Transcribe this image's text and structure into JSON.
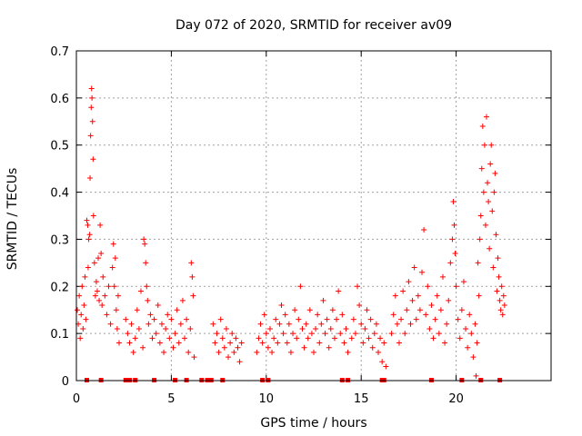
{
  "chart_data": {
    "type": "scatter",
    "title": "Day 072 of 2020, SRMTID for receiver av09",
    "xlabel": "GPS time / hours",
    "ylabel": "SRMTID / TECUs",
    "xlim": [
      0,
      25
    ],
    "ylim": [
      0,
      0.7
    ],
    "xticks": [
      0,
      5,
      10,
      15,
      20
    ],
    "yticks": [
      0,
      0.1,
      0.2,
      0.3,
      0.4,
      0.5,
      0.6,
      0.7
    ],
    "xtick_labels": [
      "0",
      "5",
      "10",
      "15",
      "20"
    ],
    "ytick_labels": [
      "0",
      "0.1",
      "0.2",
      "0.3",
      "0.4",
      "0.5",
      "0.6",
      "0.7"
    ],
    "grid": true,
    "marker": "plus",
    "series_color": "#ff0000",
    "series": [
      {
        "name": "SRMTID",
        "points": [
          [
            0.05,
            0.15
          ],
          [
            0.1,
            0.12
          ],
          [
            0.15,
            0.18
          ],
          [
            0.2,
            0.09
          ],
          [
            0.25,
            0.14
          ],
          [
            0.3,
            0.2
          ],
          [
            0.35,
            0.11
          ],
          [
            0.4,
            0.16
          ],
          [
            0.45,
            0.22
          ],
          [
            0.5,
            0.13
          ],
          [
            0.55,
            0.34
          ],
          [
            0.6,
            0.33
          ],
          [
            0.62,
            0.24
          ],
          [
            0.65,
            0.3
          ],
          [
            0.7,
            0.31
          ],
          [
            0.72,
            0.43
          ],
          [
            0.75,
            0.52
          ],
          [
            0.78,
            0.58
          ],
          [
            0.8,
            0.62
          ],
          [
            0.82,
            0.6
          ],
          [
            0.85,
            0.55
          ],
          [
            0.88,
            0.47
          ],
          [
            0.9,
            0.35
          ],
          [
            0.95,
            0.25
          ],
          [
            1.0,
            0.18
          ],
          [
            1.05,
            0.21
          ],
          [
            1.1,
            0.19
          ],
          [
            1.15,
            0.26
          ],
          [
            1.2,
            0.17
          ],
          [
            1.25,
            0.33
          ],
          [
            1.3,
            0.27
          ],
          [
            1.35,
            0.16
          ],
          [
            1.4,
            0.22
          ],
          [
            1.5,
            0.18
          ],
          [
            1.6,
            0.14
          ],
          [
            1.7,
            0.2
          ],
          [
            1.8,
            0.12
          ],
          [
            1.9,
            0.24
          ],
          [
            1.95,
            0.29
          ],
          [
            2.0,
            0.2
          ],
          [
            2.05,
            0.26
          ],
          [
            2.1,
            0.15
          ],
          [
            2.15,
            0.11
          ],
          [
            2.2,
            0.18
          ],
          [
            2.25,
            0.08
          ],
          [
            2.6,
            0.13
          ],
          [
            2.7,
            0.1
          ],
          [
            2.8,
            0.08
          ],
          [
            2.9,
            0.12
          ],
          [
            3.0,
            0.06
          ],
          [
            3.1,
            0.09
          ],
          [
            3.2,
            0.15
          ],
          [
            3.3,
            0.11
          ],
          [
            3.4,
            0.19
          ],
          [
            3.5,
            0.07
          ],
          [
            3.55,
            0.3
          ],
          [
            3.6,
            0.29
          ],
          [
            3.65,
            0.25
          ],
          [
            3.7,
            0.2
          ],
          [
            3.75,
            0.17
          ],
          [
            3.8,
            0.12
          ],
          [
            3.9,
            0.14
          ],
          [
            4.0,
            0.09
          ],
          [
            4.1,
            0.13
          ],
          [
            4.2,
            0.1
          ],
          [
            4.3,
            0.16
          ],
          [
            4.4,
            0.08
          ],
          [
            4.5,
            0.12
          ],
          [
            4.6,
            0.06
          ],
          [
            4.7,
            0.11
          ],
          [
            4.8,
            0.14
          ],
          [
            4.9,
            0.09
          ],
          [
            5.0,
            0.13
          ],
          [
            5.1,
            0.07
          ],
          [
            5.2,
            0.1
          ],
          [
            5.3,
            0.15
          ],
          [
            5.4,
            0.08
          ],
          [
            5.5,
            0.12
          ],
          [
            5.6,
            0.17
          ],
          [
            5.7,
            0.09
          ],
          [
            5.8,
            0.13
          ],
          [
            5.9,
            0.06
          ],
          [
            6.0,
            0.11
          ],
          [
            6.05,
            0.25
          ],
          [
            6.1,
            0.22
          ],
          [
            6.15,
            0.18
          ],
          [
            6.2,
            0.05
          ],
          [
            7.2,
            0.12
          ],
          [
            7.3,
            0.08
          ],
          [
            7.4,
            0.1
          ],
          [
            7.5,
            0.06
          ],
          [
            7.6,
            0.13
          ],
          [
            7.7,
            0.09
          ],
          [
            7.8,
            0.07
          ],
          [
            7.9,
            0.11
          ],
          [
            8.0,
            0.05
          ],
          [
            8.1,
            0.08
          ],
          [
            8.2,
            0.1
          ],
          [
            8.3,
            0.06
          ],
          [
            8.4,
            0.09
          ],
          [
            8.5,
            0.07
          ],
          [
            8.6,
            0.04
          ],
          [
            8.7,
            0.08
          ],
          [
            9.5,
            0.06
          ],
          [
            9.6,
            0.09
          ],
          [
            9.7,
            0.12
          ],
          [
            9.8,
            0.08
          ],
          [
            9.9,
            0.14
          ],
          [
            10.0,
            0.1
          ],
          [
            10.1,
            0.07
          ],
          [
            10.2,
            0.11
          ],
          [
            10.3,
            0.06
          ],
          [
            10.4,
            0.09
          ],
          [
            10.5,
            0.13
          ],
          [
            10.6,
            0.08
          ],
          [
            10.7,
            0.12
          ],
          [
            10.8,
            0.16
          ],
          [
            10.9,
            0.1
          ],
          [
            11.0,
            0.14
          ],
          [
            11.1,
            0.08
          ],
          [
            11.2,
            0.12
          ],
          [
            11.3,
            0.06
          ],
          [
            11.4,
            0.1
          ],
          [
            11.5,
            0.15
          ],
          [
            11.6,
            0.09
          ],
          [
            11.7,
            0.13
          ],
          [
            11.8,
            0.2
          ],
          [
            11.9,
            0.11
          ],
          [
            12.0,
            0.07
          ],
          [
            12.1,
            0.12
          ],
          [
            12.2,
            0.09
          ],
          [
            12.3,
            0.15
          ],
          [
            12.4,
            0.1
          ],
          [
            12.5,
            0.06
          ],
          [
            12.6,
            0.11
          ],
          [
            12.7,
            0.14
          ],
          [
            12.8,
            0.08
          ],
          [
            12.9,
            0.12
          ],
          [
            13.0,
            0.17
          ],
          [
            13.1,
            0.1
          ],
          [
            13.2,
            0.13
          ],
          [
            13.3,
            0.07
          ],
          [
            13.4,
            0.11
          ],
          [
            13.5,
            0.15
          ],
          [
            13.6,
            0.09
          ],
          [
            13.7,
            0.13
          ],
          [
            13.8,
            0.19
          ],
          [
            13.9,
            0.1
          ],
          [
            14.0,
            0.14
          ],
          [
            14.1,
            0.08
          ],
          [
            14.2,
            0.11
          ],
          [
            14.3,
            0.06
          ],
          [
            14.5,
            0.09
          ],
          [
            14.6,
            0.13
          ],
          [
            14.7,
            0.1
          ],
          [
            14.8,
            0.2
          ],
          [
            14.9,
            0.16
          ],
          [
            15.0,
            0.12
          ],
          [
            15.1,
            0.08
          ],
          [
            15.2,
            0.11
          ],
          [
            15.3,
            0.15
          ],
          [
            15.4,
            0.09
          ],
          [
            15.5,
            0.13
          ],
          [
            15.6,
            0.07
          ],
          [
            15.7,
            0.1
          ],
          [
            15.8,
            0.12
          ],
          [
            15.9,
            0.06
          ],
          [
            16.0,
            0.09
          ],
          [
            16.1,
            0.04
          ],
          [
            16.2,
            0.08
          ],
          [
            16.3,
            0.03
          ],
          [
            16.6,
            0.1
          ],
          [
            16.7,
            0.14
          ],
          [
            16.8,
            0.18
          ],
          [
            16.9,
            0.12
          ],
          [
            17.0,
            0.08
          ],
          [
            17.1,
            0.13
          ],
          [
            17.2,
            0.19
          ],
          [
            17.3,
            0.1
          ],
          [
            17.4,
            0.15
          ],
          [
            17.5,
            0.21
          ],
          [
            17.6,
            0.12
          ],
          [
            17.7,
            0.17
          ],
          [
            17.8,
            0.24
          ],
          [
            17.9,
            0.13
          ],
          [
            18.0,
            0.18
          ],
          [
            18.1,
            0.15
          ],
          [
            18.2,
            0.23
          ],
          [
            18.3,
            0.32
          ],
          [
            18.4,
            0.14
          ],
          [
            18.5,
            0.2
          ],
          [
            18.6,
            0.11
          ],
          [
            18.7,
            0.16
          ],
          [
            18.8,
            0.09
          ],
          [
            18.9,
            0.13
          ],
          [
            19.0,
            0.18
          ],
          [
            19.1,
            0.1
          ],
          [
            19.2,
            0.15
          ],
          [
            19.3,
            0.22
          ],
          [
            19.4,
            0.08
          ],
          [
            19.5,
            0.12
          ],
          [
            19.6,
            0.17
          ],
          [
            19.7,
            0.25
          ],
          [
            19.8,
            0.3
          ],
          [
            19.85,
            0.38
          ],
          [
            19.9,
            0.33
          ],
          [
            19.95,
            0.27
          ],
          [
            20.0,
            0.2
          ],
          [
            20.1,
            0.13
          ],
          [
            20.2,
            0.09
          ],
          [
            20.3,
            0.15
          ],
          [
            20.4,
            0.21
          ],
          [
            20.5,
            0.11
          ],
          [
            20.6,
            0.07
          ],
          [
            20.7,
            0.14
          ],
          [
            20.8,
            0.1
          ],
          [
            20.9,
            0.05
          ],
          [
            21.0,
            0.12
          ],
          [
            21.05,
            0.01
          ],
          [
            21.1,
            0.08
          ],
          [
            21.15,
            0.25
          ],
          [
            21.2,
            0.18
          ],
          [
            21.25,
            0.3
          ],
          [
            21.3,
            0.35
          ],
          [
            21.35,
            0.45
          ],
          [
            21.4,
            0.54
          ],
          [
            21.45,
            0.4
          ],
          [
            21.5,
            0.5
          ],
          [
            21.55,
            0.33
          ],
          [
            21.6,
            0.56
          ],
          [
            21.65,
            0.42
          ],
          [
            21.7,
            0.38
          ],
          [
            21.75,
            0.28
          ],
          [
            21.8,
            0.46
          ],
          [
            21.85,
            0.5
          ],
          [
            21.9,
            0.36
          ],
          [
            21.95,
            0.24
          ],
          [
            22.0,
            0.4
          ],
          [
            22.05,
            0.44
          ],
          [
            22.1,
            0.31
          ],
          [
            22.15,
            0.19
          ],
          [
            22.2,
            0.26
          ],
          [
            22.25,
            0.22
          ],
          [
            22.3,
            0.17
          ],
          [
            22.35,
            0.15
          ],
          [
            22.4,
            0.2
          ],
          [
            22.45,
            0.14
          ],
          [
            22.5,
            0.18
          ],
          [
            22.55,
            0.16
          ]
        ],
        "flagged_at_zero": [
          0.55,
          1.3,
          2.6,
          2.8,
          3.1,
          4.1,
          5.2,
          5.8,
          6.6,
          6.9,
          7.1,
          7.7,
          9.8,
          10.1,
          14.0,
          14.3,
          16.1,
          16.2,
          18.7,
          20.3,
          21.3,
          22.3
        ]
      }
    ]
  }
}
